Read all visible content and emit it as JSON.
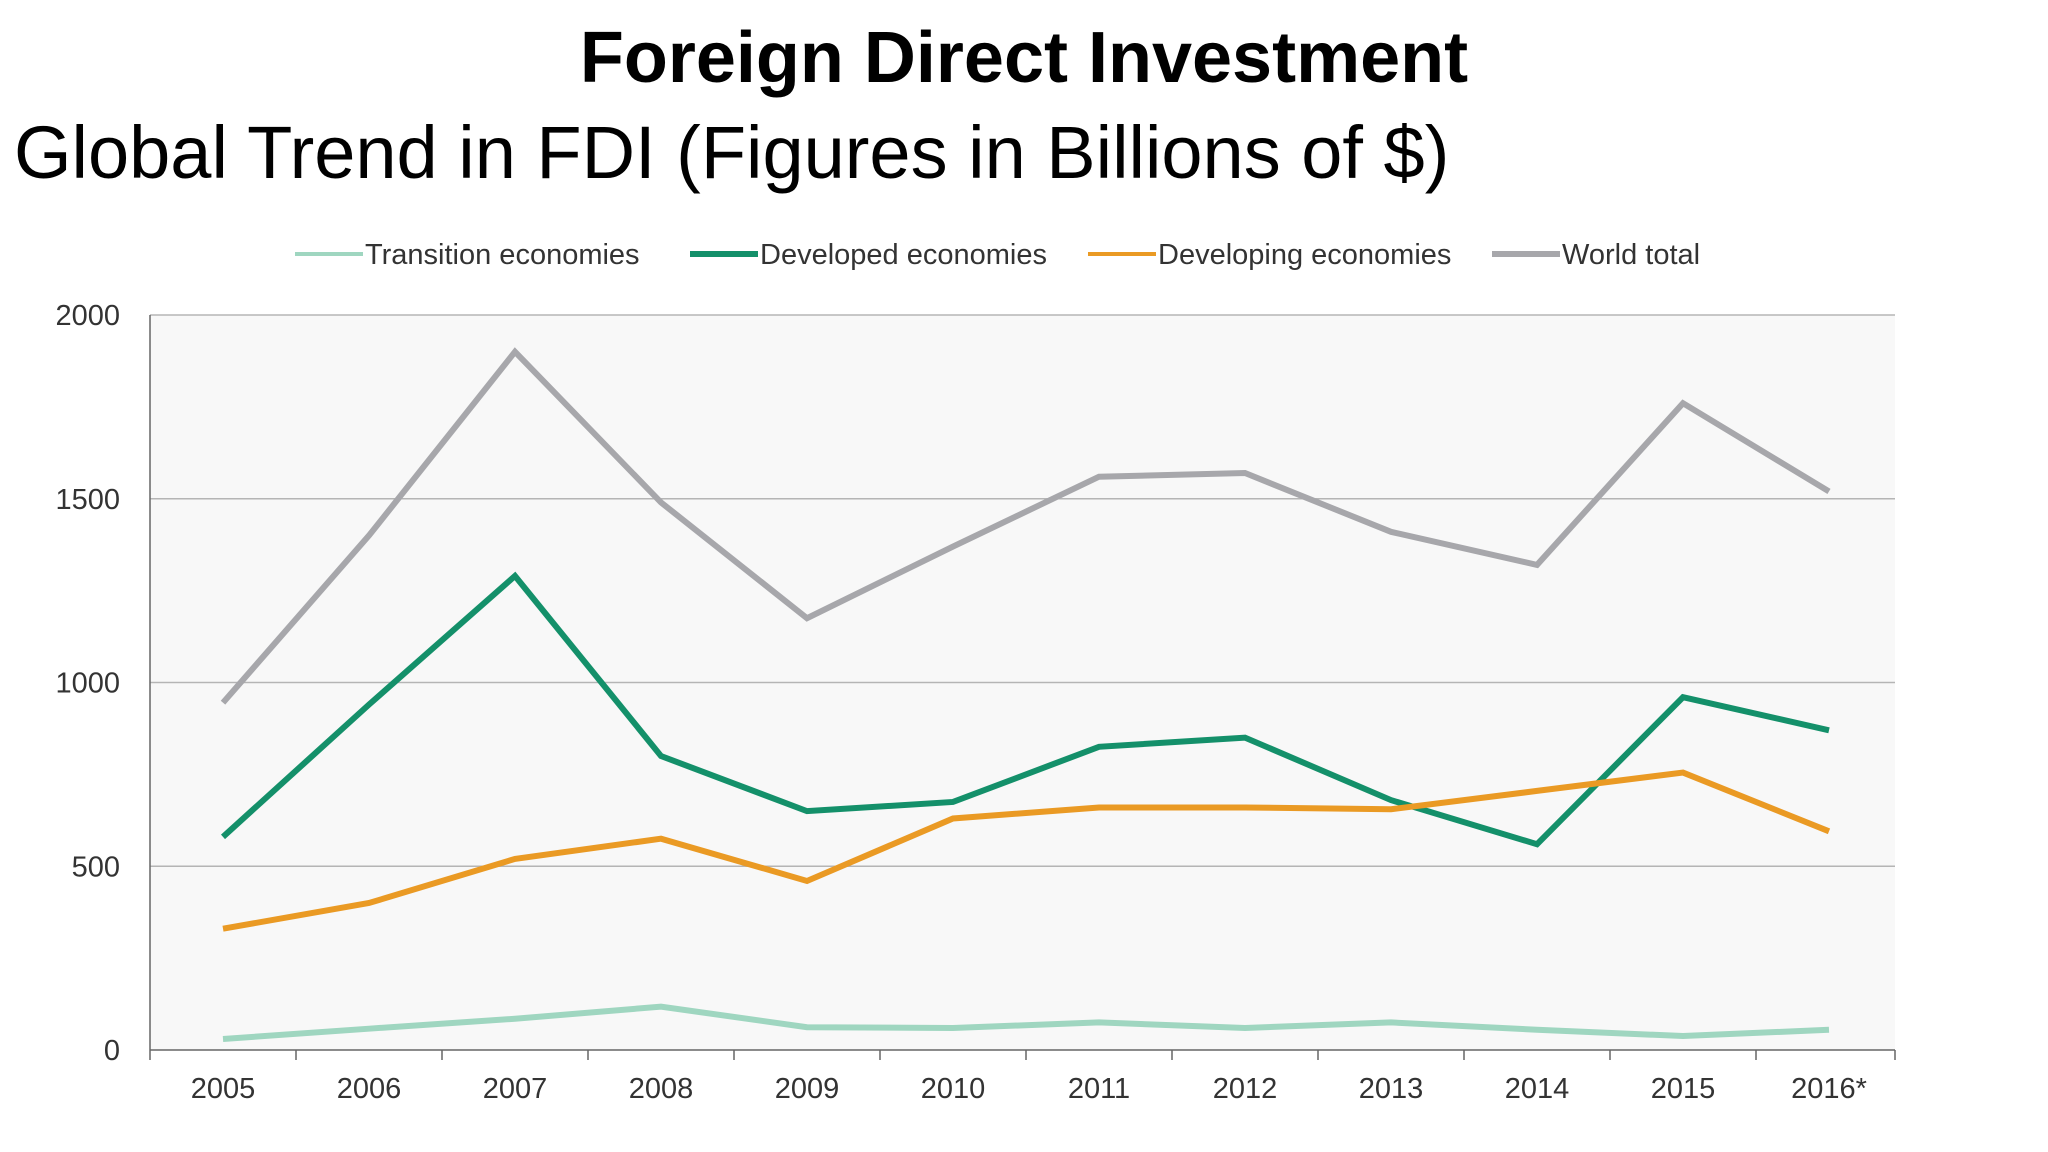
{
  "slide": {
    "title": "Foreign Direct Investment",
    "subtitle": "Global Trend in FDI (Figures in Billions of $)"
  },
  "chart_data": {
    "type": "line",
    "title": "",
    "xlabel": "",
    "ylabel": "",
    "ylim": [
      0,
      2000
    ],
    "yticks": [
      0,
      500,
      1000,
      1500,
      2000
    ],
    "grid": true,
    "legend_position": "top",
    "categories": [
      "2005",
      "2006",
      "2007",
      "2008",
      "2009",
      "2010",
      "2011",
      "2012",
      "2013",
      "2014",
      "2015",
      "2016*"
    ],
    "series": [
      {
        "name": "Transition economies",
        "color": "#9fd6c0",
        "values": [
          30,
          58,
          85,
          118,
          62,
          60,
          75,
          60,
          75,
          55,
          38,
          55
        ]
      },
      {
        "name": "Developed economies",
        "color": "#14906a",
        "values": [
          580,
          940,
          1290,
          800,
          650,
          675,
          825,
          850,
          680,
          560,
          960,
          870
        ]
      },
      {
        "name": "Developing economies",
        "color": "#ea9a24",
        "values": [
          330,
          400,
          520,
          575,
          460,
          630,
          660,
          660,
          655,
          705,
          755,
          595
        ]
      },
      {
        "name": "World total",
        "color": "#a7a7ab",
        "values": [
          945,
          1400,
          1900,
          1490,
          1175,
          1370,
          1560,
          1570,
          1410,
          1320,
          1760,
          1520
        ]
      }
    ]
  }
}
